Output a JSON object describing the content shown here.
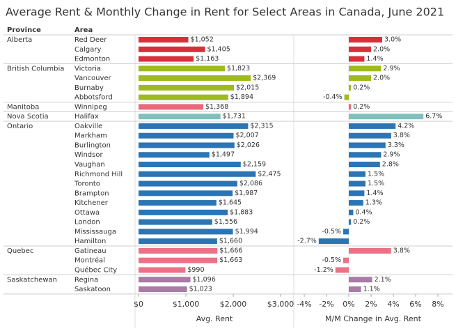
{
  "chart_data": {
    "type": "bar",
    "orientation": "horizontal",
    "title": "Average Rent & Monthly Change in Rent for Select Areas in Canada, June 2021",
    "row_header": "Province",
    "category_header": "Area",
    "provinces": [
      "Alberta",
      null,
      null,
      "British Columbia",
      null,
      null,
      null,
      "Manitoba",
      "Nova Scotia",
      "Ontario",
      null,
      null,
      null,
      null,
      null,
      null,
      null,
      null,
      null,
      null,
      null,
      null,
      "Quebec",
      null,
      null,
      "Saskatchewan",
      null
    ],
    "categories": [
      "Red Deer",
      "Calgary",
      "Edmonton",
      "Victoria",
      "Vancouver",
      "Burnaby",
      "Abbotsford",
      "Winnipeg",
      "Halifax",
      "Oakville",
      "Markham",
      "Burlington",
      "Windsor",
      "Vaughan",
      "Richmond Hill",
      "Toronto",
      "Brampton",
      "Kitchener",
      "Ottawa",
      "London",
      "Mississauga",
      "Hamilton",
      "Gatineau",
      "Montréal",
      "Québec City",
      "Regina",
      "Saskatoon"
    ],
    "colors": [
      "#d7303a",
      "#d7303a",
      "#d7303a",
      "#9dbb1f",
      "#9dbb1f",
      "#9dbb1f",
      "#9dbb1f",
      "#e9687a",
      "#7fbfbc",
      "#2c75b4",
      "#2c75b4",
      "#2c75b4",
      "#2c75b4",
      "#2c75b4",
      "#2c75b4",
      "#2c75b4",
      "#2c75b4",
      "#2c75b4",
      "#2c75b4",
      "#2c75b4",
      "#2c75b4",
      "#2c75b4",
      "#ea7287",
      "#ea7287",
      "#ea7287",
      "#a97ba5",
      "#a97ba5"
    ],
    "series": [
      {
        "name": "Avg. Rent",
        "values": [
          1052,
          1405,
          1163,
          1823,
          2369,
          2015,
          1894,
          1368,
          1731,
          2315,
          2007,
          2026,
          1497,
          2159,
          2475,
          2086,
          1987,
          1645,
          1883,
          1556,
          1994,
          1660,
          1666,
          1663,
          990,
          1096,
          1023
        ],
        "value_labels": [
          "$1,052",
          "$1,405",
          "$1,163",
          "$1,823",
          "$2,369",
          "$2,015",
          "$1,894",
          "$1,368",
          "$1,731",
          "$2,315",
          "$2,007",
          "$2,026",
          "$1,497",
          "$2,159",
          "$2,475",
          "$2,086",
          "$1,987",
          "$1,645",
          "$1,883",
          "$1,556",
          "$1,994",
          "$1,660",
          "$1,666",
          "$1,663",
          "$990",
          "$1,096",
          "$1,023"
        ],
        "xlim": [
          0,
          3000
        ],
        "xticks": [
          {
            "value": 0,
            "label": "$0"
          },
          {
            "value": 1000,
            "label": "$1,000"
          },
          {
            "value": 2000,
            "label": "$2,000"
          },
          {
            "value": 3000,
            "label": "$3,000"
          }
        ]
      },
      {
        "name": "M/M Change in Avg. Rent",
        "values": [
          3.0,
          2.0,
          1.4,
          2.9,
          2.0,
          0.2,
          -0.4,
          0.2,
          6.7,
          4.2,
          3.8,
          3.3,
          2.9,
          2.8,
          1.5,
          1.5,
          1.4,
          1.3,
          0.4,
          0.2,
          -0.5,
          -2.7,
          3.8,
          -0.5,
          -1.2,
          2.1,
          1.1
        ],
        "value_labels": [
          "3.0%",
          "2.0%",
          "1.4%",
          "2.9%",
          "2.0%",
          "0.2%",
          "-0.4%",
          "0.2%",
          "6.7%",
          "4.2%",
          "3.8%",
          "3.3%",
          "2.9%",
          "2.8%",
          "1.5%",
          "1.5%",
          "1.4%",
          "1.3%",
          "0.4%",
          "0.2%",
          "-0.5%",
          "-2.7%",
          "3.8%",
          "-0.5%",
          "-1.2%",
          "2.1%",
          "1.1%"
        ],
        "xlim": [
          -4,
          8
        ],
        "xticks": [
          {
            "value": -4,
            "label": "-4%"
          },
          {
            "value": -2,
            "label": "-2%"
          },
          {
            "value": 0,
            "label": "0%"
          },
          {
            "value": 2,
            "label": "2%"
          },
          {
            "value": 4,
            "label": "4%"
          },
          {
            "value": 6,
            "label": "6%"
          },
          {
            "value": 8,
            "label": "8%"
          }
        ]
      }
    ]
  }
}
